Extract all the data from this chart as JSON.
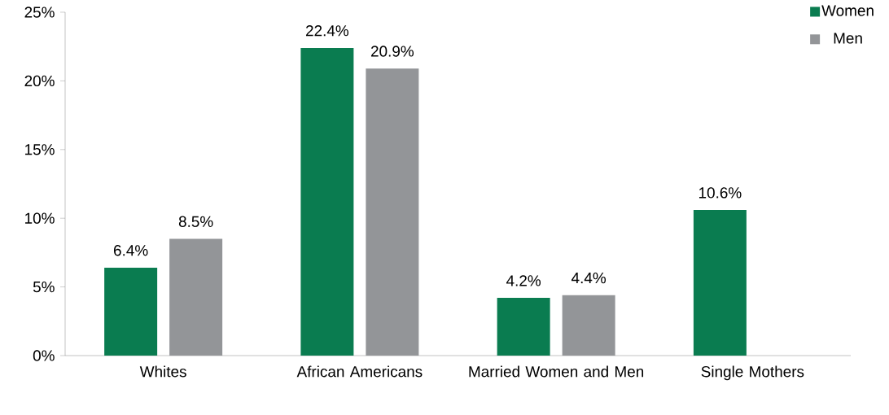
{
  "chart_data": {
    "type": "bar",
    "categories": [
      "Whites",
      "African Americans",
      "Married Women and Men",
      "Single Mothers"
    ],
    "series": [
      {
        "name": "Women",
        "color": "#0a7c50",
        "values": [
          6.4,
          22.4,
          4.2,
          10.6
        ],
        "value_labels": [
          "6.4%",
          "22.4%",
          "4.2%",
          "10.6%"
        ]
      },
      {
        "name": "Men",
        "color": "#939598",
        "values": [
          8.5,
          20.9,
          4.4,
          null
        ],
        "value_labels": [
          "8.5%",
          "20.9%",
          "4.4%",
          null
        ]
      }
    ],
    "ylim": [
      0,
      25
    ],
    "yticks": [
      {
        "value": 0,
        "label": "0%"
      },
      {
        "value": 5,
        "label": "5%"
      },
      {
        "value": 10,
        "label": "10%"
      },
      {
        "value": 15,
        "label": "15%"
      },
      {
        "value": 20,
        "label": "20%"
      },
      {
        "value": 25,
        "label": "25%"
      }
    ],
    "grid": false,
    "legend": "top right"
  }
}
